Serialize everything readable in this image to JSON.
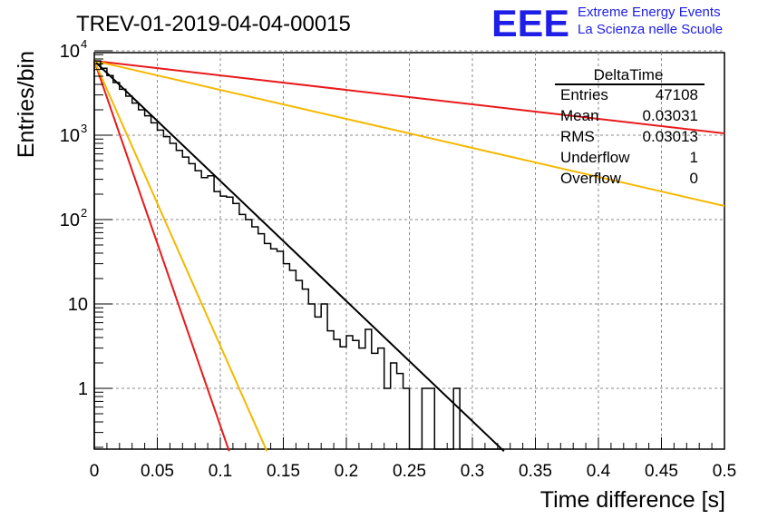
{
  "header": {
    "title": "TREV-01-2019-04-04-00015",
    "logo_text": "EEE",
    "logo_line1": "Extreme Energy Events",
    "logo_line2": "La Scienza nelle Scuole"
  },
  "stats_box": {
    "title": "DeltaTime",
    "rows": [
      {
        "label": "Entries",
        "value": "47108"
      },
      {
        "label": "Mean",
        "value": "0.03031"
      },
      {
        "label": "RMS",
        "value": "0.03013"
      },
      {
        "label": "Underflow",
        "value": "1"
      },
      {
        "label": "Overflow",
        "value": "0"
      }
    ]
  },
  "chart_data": {
    "type": "line",
    "xlabel": "Time difference [s]",
    "ylabel": "Entries/bin",
    "xlim": [
      0,
      0.5
    ],
    "ylim": [
      0.18,
      12000
    ],
    "yscale": "log",
    "grid": true,
    "x_ticks": [
      "0",
      "0.05",
      "0.1",
      "0.15",
      "0.2",
      "0.25",
      "0.3",
      "0.35",
      "0.4",
      "0.45",
      "0.5"
    ],
    "y_ticks": [
      {
        "value": 1,
        "label": "1"
      },
      {
        "value": 10,
        "label": "10"
      },
      {
        "value": 100,
        "label": "10",
        "exp": "2"
      },
      {
        "value": 1000,
        "label": "10",
        "exp": "3"
      },
      {
        "value": 10000,
        "label": "10",
        "exp": "4"
      }
    ],
    "histogram": {
      "bin_width": 0.005,
      "color": "#000000",
      "values": [
        7600,
        6200,
        5100,
        4200,
        3500,
        2900,
        2400,
        2000,
        1700,
        1400,
        1150,
        960,
        800,
        660,
        550,
        460,
        380,
        315,
        330,
        215,
        190,
        185,
        155,
        115,
        100,
        82,
        68,
        52,
        45,
        42,
        30,
        25,
        19,
        15,
        10,
        7,
        10,
        4.8,
        3.8,
        3.1,
        4.2,
        3.7,
        3.0,
        5.0,
        2.6,
        3.0,
        1.0,
        2.0,
        1.5,
        1.0,
        0.18,
        0.18,
        1.0,
        1.0,
        0.18,
        0.18,
        0.18,
        1.0,
        0.18,
        0.18,
        0.18,
        0.18,
        0.18,
        0.18,
        0.18
      ]
    },
    "series": [
      {
        "color": "#000000",
        "x": [
          0,
          0.325
        ],
        "y": [
          7600,
          0.18
        ]
      },
      {
        "color": "#e8191a",
        "x": [
          0,
          0.5
        ],
        "y": [
          7600,
          1050
        ]
      },
      {
        "color": "#f5b800",
        "x": [
          0,
          0.5
        ],
        "y": [
          7600,
          145
        ]
      },
      {
        "color": "#e8191a",
        "x": [
          0,
          0.107
        ],
        "y": [
          7600,
          0.18
        ]
      },
      {
        "color": "#f5b800",
        "x": [
          0,
          0.137
        ],
        "y": [
          7600,
          0.18
        ]
      }
    ]
  }
}
